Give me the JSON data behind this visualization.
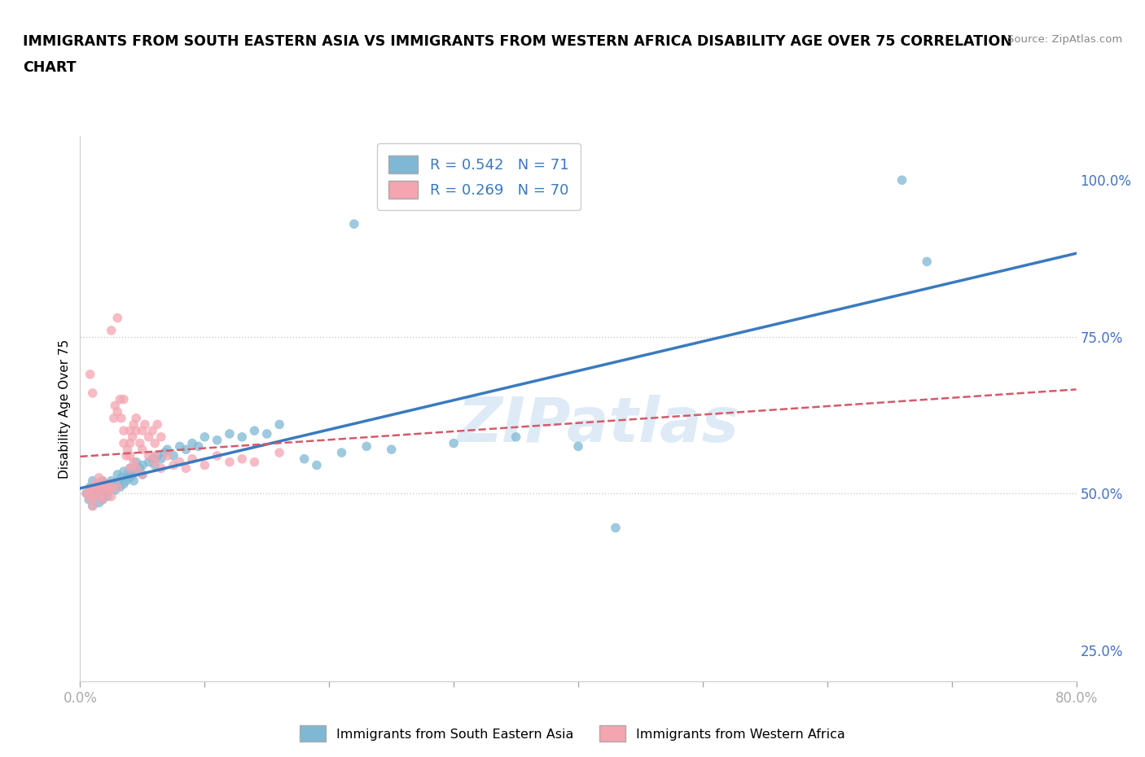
{
  "title_line1": "IMMIGRANTS FROM SOUTH EASTERN ASIA VS IMMIGRANTS FROM WESTERN AFRICA DISABILITY AGE OVER 75 CORRELATION",
  "title_line2": "CHART",
  "source_text": "Source: ZipAtlas.com",
  "ylabel": "Disability Age Over 75",
  "xlim": [
    0.0,
    0.8
  ],
  "ylim": [
    0.2,
    1.07
  ],
  "xticks": [
    0.0,
    0.1,
    0.2,
    0.3,
    0.4,
    0.5,
    0.6,
    0.7,
    0.8
  ],
  "xticklabels": [
    "0.0%",
    "",
    "",
    "",
    "",
    "",
    "",
    "",
    "80.0%"
  ],
  "ytick_positions": [
    0.25,
    0.5,
    0.75,
    1.0
  ],
  "ytick_labels": [
    "25.0%",
    "50.0%",
    "75.0%",
    "100.0%"
  ],
  "blue_color": "#7eb8d4",
  "pink_color": "#f4a5b0",
  "blue_line_color": "#3a7abf",
  "pink_line_color": "#d45a6a",
  "R_blue": 0.542,
  "N_blue": 71,
  "R_pink": 0.269,
  "N_pink": 70,
  "legend_label_blue": "Immigrants from South Eastern Asia",
  "legend_label_pink": "Immigrants from Western Africa",
  "watermark": "ZIPatlas",
  "blue_scatter": [
    [
      0.005,
      0.5
    ],
    [
      0.007,
      0.49
    ],
    [
      0.008,
      0.51
    ],
    [
      0.01,
      0.48
    ],
    [
      0.01,
      0.505
    ],
    [
      0.01,
      0.52
    ],
    [
      0.012,
      0.495
    ],
    [
      0.013,
      0.51
    ],
    [
      0.015,
      0.5
    ],
    [
      0.015,
      0.515
    ],
    [
      0.015,
      0.485
    ],
    [
      0.017,
      0.505
    ],
    [
      0.018,
      0.52
    ],
    [
      0.018,
      0.49
    ],
    [
      0.019,
      0.51
    ],
    [
      0.02,
      0.5
    ],
    [
      0.02,
      0.515
    ],
    [
      0.022,
      0.505
    ],
    [
      0.022,
      0.495
    ],
    [
      0.025,
      0.52
    ],
    [
      0.025,
      0.51
    ],
    [
      0.027,
      0.515
    ],
    [
      0.028,
      0.505
    ],
    [
      0.03,
      0.53
    ],
    [
      0.03,
      0.515
    ],
    [
      0.032,
      0.51
    ],
    [
      0.033,
      0.525
    ],
    [
      0.035,
      0.515
    ],
    [
      0.035,
      0.535
    ],
    [
      0.037,
      0.52
    ],
    [
      0.038,
      0.53
    ],
    [
      0.04,
      0.525
    ],
    [
      0.04,
      0.54
    ],
    [
      0.042,
      0.53
    ],
    [
      0.043,
      0.52
    ],
    [
      0.045,
      0.535
    ],
    [
      0.045,
      0.55
    ],
    [
      0.048,
      0.54
    ],
    [
      0.05,
      0.545
    ],
    [
      0.05,
      0.53
    ],
    [
      0.055,
      0.55
    ],
    [
      0.058,
      0.555
    ],
    [
      0.06,
      0.545
    ],
    [
      0.062,
      0.56
    ],
    [
      0.065,
      0.555
    ],
    [
      0.068,
      0.565
    ],
    [
      0.07,
      0.57
    ],
    [
      0.075,
      0.56
    ],
    [
      0.08,
      0.575
    ],
    [
      0.085,
      0.57
    ],
    [
      0.09,
      0.58
    ],
    [
      0.095,
      0.575
    ],
    [
      0.1,
      0.59
    ],
    [
      0.11,
      0.585
    ],
    [
      0.12,
      0.595
    ],
    [
      0.13,
      0.59
    ],
    [
      0.14,
      0.6
    ],
    [
      0.15,
      0.595
    ],
    [
      0.16,
      0.61
    ],
    [
      0.18,
      0.555
    ],
    [
      0.19,
      0.545
    ],
    [
      0.21,
      0.565
    ],
    [
      0.23,
      0.575
    ],
    [
      0.25,
      0.57
    ],
    [
      0.3,
      0.58
    ],
    [
      0.35,
      0.59
    ],
    [
      0.4,
      0.575
    ],
    [
      0.43,
      0.445
    ],
    [
      0.22,
      0.93
    ],
    [
      0.66,
      1.0
    ],
    [
      0.68,
      0.87
    ]
  ],
  "pink_scatter": [
    [
      0.005,
      0.5
    ],
    [
      0.007,
      0.495
    ],
    [
      0.008,
      0.505
    ],
    [
      0.01,
      0.49
    ],
    [
      0.01,
      0.51
    ],
    [
      0.01,
      0.48
    ],
    [
      0.012,
      0.5
    ],
    [
      0.013,
      0.515
    ],
    [
      0.015,
      0.495
    ],
    [
      0.015,
      0.51
    ],
    [
      0.015,
      0.525
    ],
    [
      0.017,
      0.505
    ],
    [
      0.018,
      0.49
    ],
    [
      0.018,
      0.52
    ],
    [
      0.02,
      0.51
    ],
    [
      0.02,
      0.5
    ],
    [
      0.022,
      0.515
    ],
    [
      0.023,
      0.505
    ],
    [
      0.025,
      0.495
    ],
    [
      0.025,
      0.51
    ],
    [
      0.027,
      0.62
    ],
    [
      0.028,
      0.64
    ],
    [
      0.03,
      0.51
    ],
    [
      0.03,
      0.63
    ],
    [
      0.032,
      0.65
    ],
    [
      0.033,
      0.62
    ],
    [
      0.035,
      0.6
    ],
    [
      0.035,
      0.58
    ],
    [
      0.037,
      0.56
    ],
    [
      0.038,
      0.57
    ],
    [
      0.04,
      0.58
    ],
    [
      0.04,
      0.6
    ],
    [
      0.042,
      0.59
    ],
    [
      0.043,
      0.61
    ],
    [
      0.045,
      0.62
    ],
    [
      0.045,
      0.6
    ],
    [
      0.048,
      0.58
    ],
    [
      0.05,
      0.6
    ],
    [
      0.05,
      0.57
    ],
    [
      0.052,
      0.61
    ],
    [
      0.055,
      0.59
    ],
    [
      0.058,
      0.6
    ],
    [
      0.06,
      0.58
    ],
    [
      0.06,
      0.56
    ],
    [
      0.062,
      0.61
    ],
    [
      0.065,
      0.59
    ],
    [
      0.025,
      0.76
    ],
    [
      0.03,
      0.78
    ],
    [
      0.035,
      0.65
    ],
    [
      0.04,
      0.56
    ],
    [
      0.04,
      0.54
    ],
    [
      0.043,
      0.55
    ],
    [
      0.045,
      0.54
    ],
    [
      0.05,
      0.53
    ],
    [
      0.055,
      0.56
    ],
    [
      0.06,
      0.55
    ],
    [
      0.065,
      0.54
    ],
    [
      0.07,
      0.56
    ],
    [
      0.075,
      0.545
    ],
    [
      0.08,
      0.55
    ],
    [
      0.085,
      0.54
    ],
    [
      0.09,
      0.555
    ],
    [
      0.1,
      0.545
    ],
    [
      0.11,
      0.56
    ],
    [
      0.12,
      0.55
    ],
    [
      0.13,
      0.555
    ],
    [
      0.14,
      0.55
    ],
    [
      0.16,
      0.565
    ],
    [
      0.008,
      0.69
    ],
    [
      0.01,
      0.66
    ]
  ]
}
